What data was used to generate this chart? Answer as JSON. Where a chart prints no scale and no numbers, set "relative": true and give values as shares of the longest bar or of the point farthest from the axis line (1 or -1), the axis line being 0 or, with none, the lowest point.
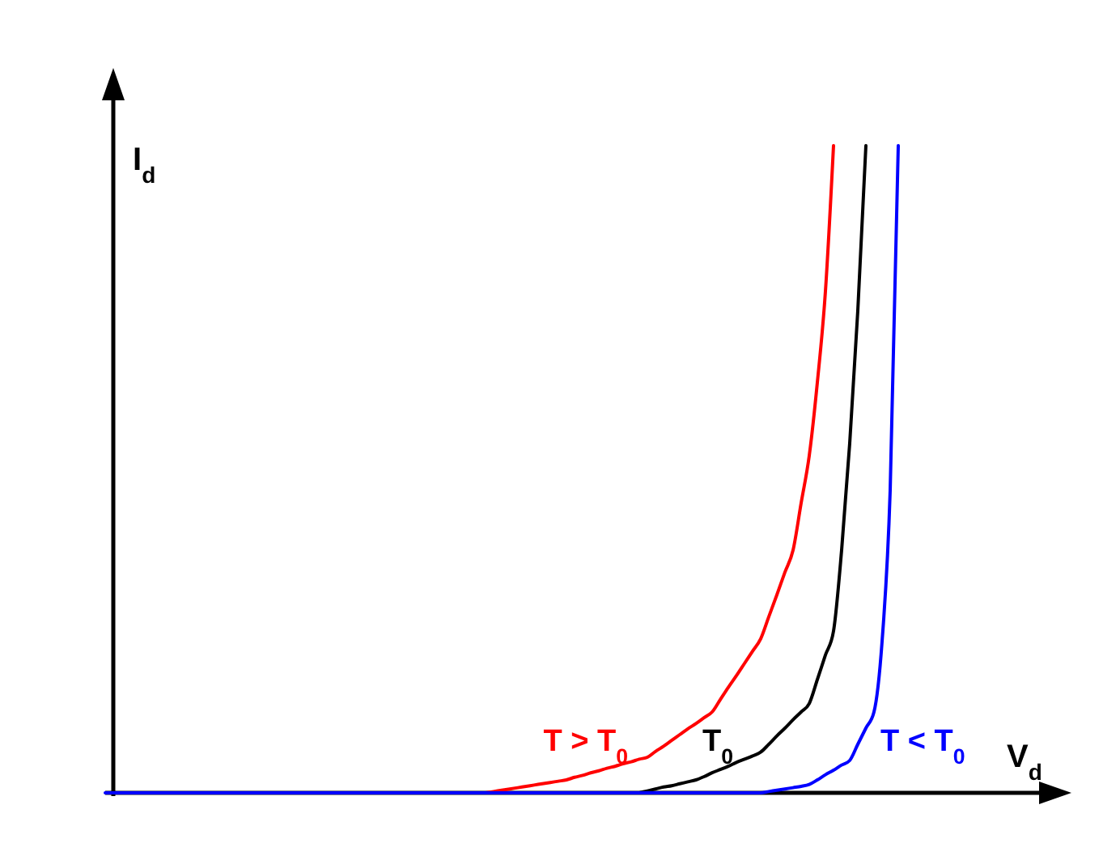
{
  "chart_data": {
    "type": "line",
    "xlabel": "V$_{d}$",
    "ylabel": "I$_{d}$",
    "relative": true,
    "tick_labels": false,
    "categories": [
      null,
      null,
      null,
      null,
      null,
      null,
      null,
      null,
      null,
      null,
      null,
      null,
      null,
      null,
      null,
      null,
      null,
      null,
      null,
      null,
      null,
      null,
      null,
      null,
      null,
      null,
      null,
      null,
      null,
      null,
      null,
      null,
      null,
      null,
      null,
      null,
      null,
      null,
      null,
      null,
      null,
      null,
      null,
      null,
      null,
      null,
      null,
      null,
      null,
      null,
      null,
      null,
      null,
      null,
      null,
      null,
      null,
      null,
      null,
      null,
      null,
      null,
      null,
      null,
      null,
      null,
      null,
      null,
      null,
      null,
      null,
      null,
      null,
      null,
      null,
      null,
      null,
      null,
      null,
      null,
      null,
      null,
      null,
      null,
      null,
      null,
      null,
      null,
      null,
      null,
      null,
      null,
      null,
      null,
      null,
      null,
      null,
      null,
      null
    ],
    "series": [
      {
        "name": "T > T$_{0}$",
        "color": "#ff0000",
        "values": [
          null,
          null,
          null,
          null,
          null,
          null,
          null,
          null,
          null,
          null,
          null,
          null,
          null,
          null,
          null,
          null,
          null,
          null,
          null,
          null,
          null,
          null,
          null,
          null,
          null,
          null,
          null,
          null,
          null,
          null,
          null,
          null,
          null,
          null,
          null,
          null,
          null,
          null,
          null,
          null,
          null,
          null,
          null,
          null,
          null,
          null,
          null,
          0,
          0.002,
          0.004,
          0.006,
          0.008,
          0.01,
          0.012,
          0.014,
          0.016,
          0.018,
          0.02,
          0.024,
          0.027,
          0.031,
          0.034,
          0.038,
          0.041,
          0.045,
          0.048,
          0.052,
          0.055,
          0.064,
          0.072,
          0.081,
          0.09,
          0.099,
          0.107,
          0.116,
          0.125,
          0.144,
          0.163,
          0.181,
          0.2,
          0.219,
          0.238,
          0.272,
          0.306,
          0.341,
          0.375,
          0.448,
          0.521,
          0.634,
          0.775,
          1,
          null,
          null,
          null,
          null,
          null,
          null,
          null,
          null
        ]
      },
      {
        "name": "T$_{0}$",
        "color": "#000000",
        "values": [
          null,
          null,
          null,
          null,
          null,
          null,
          null,
          null,
          null,
          null,
          null,
          null,
          null,
          null,
          null,
          null,
          null,
          null,
          null,
          null,
          null,
          null,
          null,
          null,
          null,
          null,
          null,
          null,
          null,
          null,
          null,
          null,
          null,
          null,
          null,
          null,
          null,
          null,
          null,
          null,
          null,
          null,
          null,
          null,
          null,
          null,
          null,
          null,
          null,
          null,
          null,
          null,
          null,
          null,
          null,
          null,
          null,
          null,
          null,
          null,
          null,
          null,
          null,
          null,
          null,
          null,
          0,
          0.003,
          0.006,
          0.009,
          0.011,
          0.014,
          0.017,
          0.02,
          0.025,
          0.031,
          0.036,
          0.041,
          0.047,
          0.052,
          0.057,
          0.063,
          0.075,
          0.088,
          0.1,
          0.113,
          0.125,
          0.138,
          0.175,
          0.213,
          0.25,
          0.375,
          0.54,
          0.745,
          1,
          null,
          null,
          null,
          null
        ]
      },
      {
        "name": "T < T$_{0}$",
        "color": "#0000ff",
        "values": [
          0,
          0,
          0,
          0,
          0,
          0,
          0,
          0,
          0,
          0,
          0,
          0,
          0,
          0,
          0,
          0,
          0,
          0,
          0,
          0,
          0,
          0,
          0,
          0,
          0,
          0,
          0,
          0,
          0,
          0,
          0,
          0,
          0,
          0,
          0,
          0,
          0,
          0,
          0,
          0,
          0,
          0,
          0,
          0,
          0,
          0,
          0,
          0,
          0,
          0,
          0,
          0,
          0,
          0,
          0,
          0,
          0,
          0,
          0,
          0,
          0,
          0,
          0,
          0,
          0,
          0,
          0,
          0,
          0,
          0,
          0,
          0,
          0,
          0,
          0,
          0,
          0,
          0,
          0,
          0,
          0,
          0,
          0.002,
          0.004,
          0.006,
          0.008,
          0.01,
          0.013,
          0.02,
          0.028,
          0.035,
          0.043,
          0.05,
          0.075,
          0.1,
          0.125,
          0.234,
          0.467,
          1
        ]
      }
    ]
  }
}
